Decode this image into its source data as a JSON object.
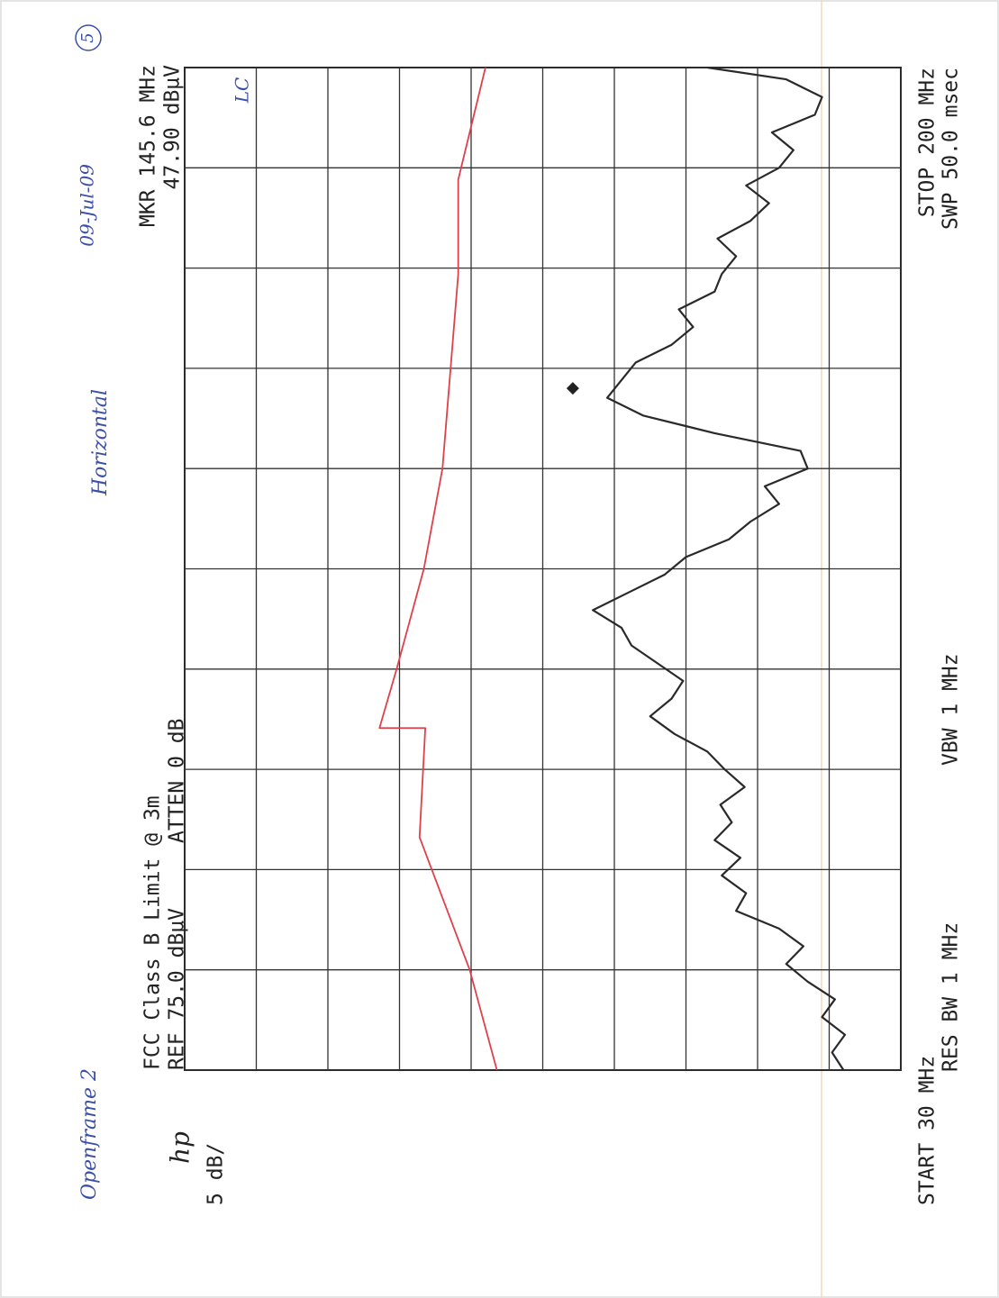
{
  "chart_data": {
    "type": "line",
    "title": "FCC Class B Limit @ 3m",
    "reference": "REF 75.0 dBµV",
    "attenuation": "ATTEN 0 dB",
    "scale": "5 dB/",
    "brand": "hp",
    "marker_frequency": "MKR 145.6 MHz",
    "marker_level": "47.90 dBµV",
    "start": "START 30 MHz",
    "stop": "STOP 200 MHz",
    "res_bw": "RES BW 1 MHz",
    "vbw": "VBW 1 MHz",
    "sweep": "SWP 50.0 msec",
    "notes": {
      "setup": "Openframe 2",
      "polarization": "Horizontal",
      "date": "09-Jul-09",
      "page": "5",
      "initials": "LC"
    },
    "xlim": [
      30,
      200
    ],
    "ylim": [
      25,
      75
    ],
    "xticks": [
      30,
      47,
      64,
      81,
      98,
      115,
      132,
      149,
      166,
      183,
      200
    ],
    "yticks": [
      25,
      30,
      35,
      40,
      45,
      50,
      55,
      60,
      65,
      70,
      75
    ],
    "grid": true,
    "marker": {
      "x": 145.6,
      "value": 47.9,
      "color": "#222"
    },
    "series": [
      {
        "color": "#2a2a2a",
        "x": [
          30,
          33,
          36,
          39,
          42,
          45,
          48,
          51,
          54,
          57,
          60,
          63,
          66,
          69,
          72,
          75,
          78,
          81,
          84,
          87,
          90,
          93,
          96,
          99,
          102,
          105,
          108,
          111,
          114,
          117,
          120,
          123,
          126,
          129,
          132,
          135,
          138,
          141,
          144,
          147,
          150,
          153,
          156,
          159,
          162,
          165,
          168,
          171,
          174,
          177,
          180,
          183,
          186,
          189,
          192,
          195,
          198,
          200
        ],
        "values": [
          29.0,
          29.8,
          28.9,
          30.5,
          29.6,
          31.5,
          33.0,
          31.8,
          33.5,
          36.5,
          35.8,
          37.5,
          36.2,
          38.0,
          36.8,
          37.6,
          35.9,
          37.3,
          38.5,
          40.8,
          42.5,
          41.0,
          40.2,
          42.0,
          43.8,
          44.5,
          46.5,
          44.0,
          41.5,
          40.0,
          37.0,
          35.5,
          33.5,
          34.5,
          31.5,
          32.0,
          38.0,
          43.0,
          45.5,
          44.5,
          43.5,
          41.0,
          39.5,
          40.5,
          38.0,
          37.5,
          36.5,
          37.8,
          35.5,
          34.2,
          35.8,
          33.5,
          32.5,
          34.0,
          31.0,
          30.5,
          33.0,
          38.5
        ]
      },
      {
        "color": "#e0404a",
        "x": [
          30,
          47,
          69.5,
          88,
          88,
          98,
          115,
          132,
          165,
          181,
          200
        ],
        "values": [
          53.2,
          55.1,
          58.6,
          58.2,
          61.4,
          60.2,
          58.3,
          57.0,
          55.9,
          55.9,
          54.0
        ]
      }
    ]
  }
}
